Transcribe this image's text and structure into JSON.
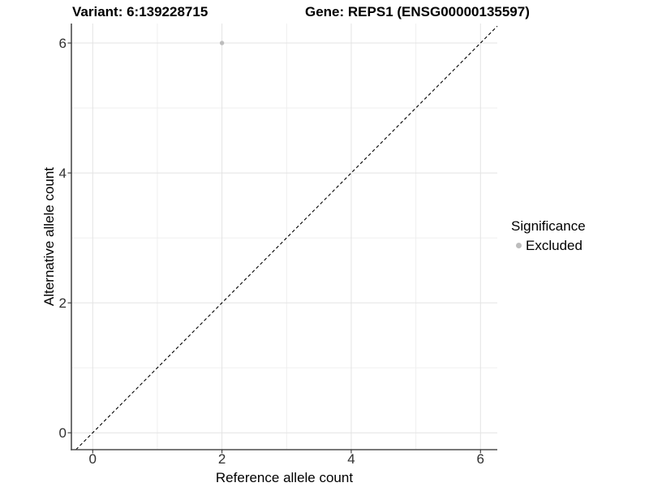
{
  "figure": {
    "title_left": "Variant: 6:139228715",
    "title_right": "Gene: REPS1 (ENSG00000135597)"
  },
  "chart_data": {
    "type": "scatter",
    "title_left": "Variant: 6:139228715",
    "title_right": "Gene: REPS1 (ENSG00000135597)",
    "xlabel": "Reference allele count",
    "ylabel": "Alternative allele count",
    "xlim": [
      -0.33,
      6.26
    ],
    "ylim": [
      -0.26,
      6.3
    ],
    "x_major_ticks": [
      0,
      2,
      4,
      6
    ],
    "y_major_ticks": [
      0,
      2,
      4,
      6
    ],
    "x_minor_gridlines": [
      1,
      3,
      5
    ],
    "y_minor_gridlines": [
      1,
      3,
      5
    ],
    "grid": "major and minor, light gray, on white background",
    "points": [
      {
        "x": 2,
        "y": 6,
        "series": "Excluded"
      }
    ],
    "reference_line": {
      "kind": "identity y=x",
      "style": "dashed",
      "color": "#000000"
    },
    "legend": {
      "title": "Significance",
      "position": "right-center",
      "items": [
        {
          "label": "Excluded",
          "color": "#bdbdbd"
        }
      ]
    },
    "colors": {
      "point": "#bdbdbd",
      "grid_major": "#e3e3e3",
      "grid_minor": "#efefef",
      "axis_line": "#4d4d4d",
      "tick_mark": "#333333",
      "tick_text": "#303030",
      "axis_title_text": "#000000",
      "dashed_line": "#000000"
    }
  }
}
